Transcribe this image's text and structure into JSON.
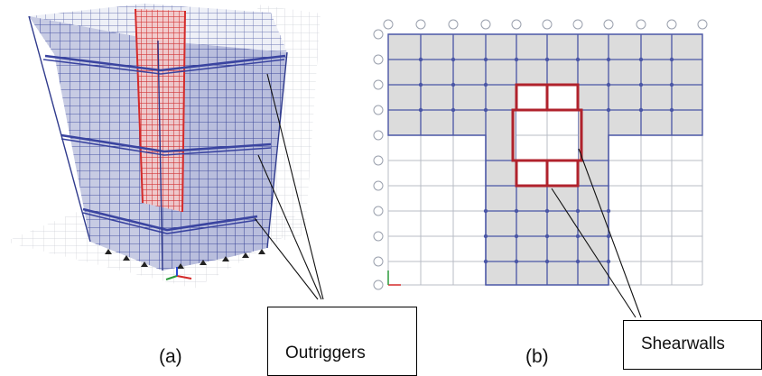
{
  "figure": {
    "panel_a_label": "(a)",
    "panel_b_label": "(b)",
    "callout_a": "Outriggers",
    "callout_b": "Shearwalls"
  },
  "colors": {
    "frame_blue": "#4a56a6",
    "core_red": "#d42a2a",
    "wall_red": "#b0222c",
    "slab_gray": "#dcdcdc",
    "grid_line": "#b8bcc6"
  },
  "icons": {
    "axis_triad": "xyz-axis-icon",
    "grid_bubble": "grid-bubble-icon"
  }
}
